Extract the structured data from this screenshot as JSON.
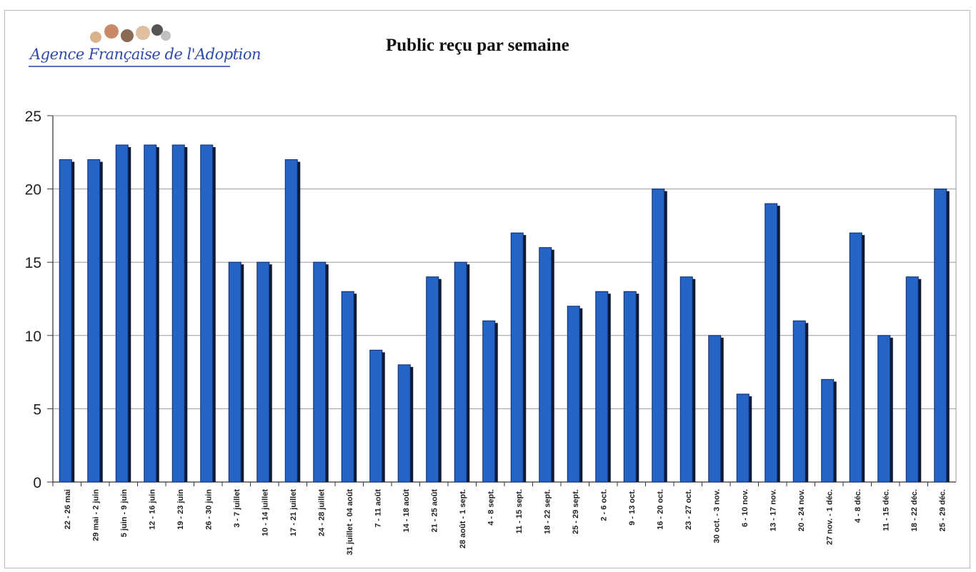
{
  "header": {
    "logo_text": "Agence Française de l'Adoption"
  },
  "colors": {
    "bar": "#2563c5",
    "bar_shadow": "#101a33",
    "grid": "#9a9a9a",
    "axis": "#333333"
  },
  "chart_data": {
    "type": "bar",
    "title": "Public reçu par semaine",
    "xlabel": "",
    "ylabel": "",
    "ylim": [
      0,
      25
    ],
    "yticks": [
      "0",
      "5",
      "10",
      "15",
      "20",
      "25"
    ],
    "grid": true,
    "categories": [
      "22 - 26 mai",
      "29 mai - 2 juin",
      "5 juin - 9 juin",
      "12 - 16 juin",
      "19 - 23 juin",
      "26 - 30 juin",
      "3 - 7 juillet",
      "10 - 14 juillet",
      "17 - 21 juillet",
      "24 - 28 juillet",
      "31 juillet - 04 août",
      "7 - 11 août",
      "14 - 18 août",
      "21 - 25 août",
      "28 août - 1 sept.",
      "4 - 8 sept.",
      "11 - 15 sept.",
      "18 - 22 sept.",
      "25 - 29 sept.",
      "2 - 6 oct.",
      "9 - 13 oct.",
      "16 - 20 oct.",
      "23 - 27 oct.",
      "30 oct. - 3 nov.",
      "6 - 10 nov.",
      "13 - 17 nov.",
      "20 - 24 nov.",
      "27 nov. - 1 déc.",
      "4 - 8 déc.",
      "11 - 15 déc.",
      "18 - 22 déc.",
      "25 - 29 déc."
    ],
    "values": [
      22,
      22,
      23,
      23,
      23,
      23,
      15,
      15,
      22,
      15,
      13,
      9,
      8,
      14,
      15,
      11,
      17,
      16,
      12,
      13,
      13,
      20,
      14,
      10,
      6,
      19,
      11,
      7,
      17,
      10,
      14,
      20
    ]
  }
}
